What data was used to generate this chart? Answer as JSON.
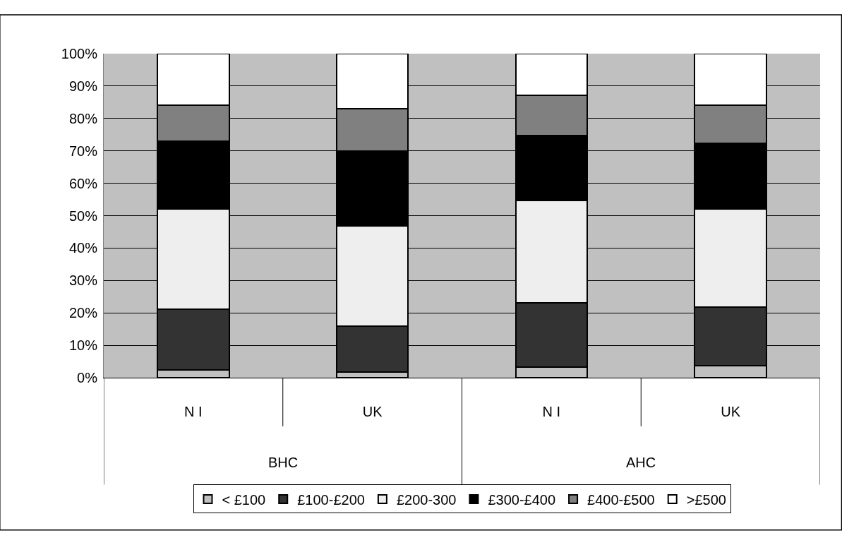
{
  "chart_data": {
    "type": "bar",
    "stacked": true,
    "categories": [
      "N I",
      "UK",
      "N I",
      "UK"
    ],
    "annotations": [
      "BHC",
      "AHC"
    ],
    "series": [
      {
        "name": "< £100",
        "color": "#c0c0c0",
        "values": [
          2.3,
          1.8,
          3.3,
          3.6
        ]
      },
      {
        "name": "£100-£200",
        "color": "#333333",
        "values": [
          18.9,
          14.0,
          19.7,
          18.2
        ]
      },
      {
        "name": "£200-300",
        "color": "#eeeeee",
        "values": [
          30.9,
          31.0,
          31.6,
          30.3
        ]
      },
      {
        "name": "£300-£400",
        "color": "#000000",
        "values": [
          20.9,
          23.1,
          20.2,
          20.3
        ]
      },
      {
        "name": "£400-£500",
        "color": "#808080",
        "values": [
          11.2,
          13.1,
          12.3,
          11.8
        ]
      },
      {
        "name": ">£500",
        "color": "#ffffff",
        "values": [
          15.8,
          17.0,
          12.9,
          15.8
        ]
      }
    ],
    "ylim": [
      0,
      100
    ],
    "yticks": [
      {
        "value": 0,
        "label": "0%"
      },
      {
        "value": 10,
        "label": "10%"
      },
      {
        "value": 20,
        "label": "20%"
      },
      {
        "value": 30,
        "label": "30%"
      },
      {
        "value": 40,
        "label": "40%"
      },
      {
        "value": 50,
        "label": "50%"
      },
      {
        "value": 60,
        "label": "60%"
      },
      {
        "value": 70,
        "label": "70%"
      },
      {
        "value": 80,
        "label": "80%"
      },
      {
        "value": 90,
        "label": "90%"
      },
      {
        "value": 100,
        "label": "100%"
      }
    ],
    "grid": "y",
    "legend": "bottom"
  }
}
